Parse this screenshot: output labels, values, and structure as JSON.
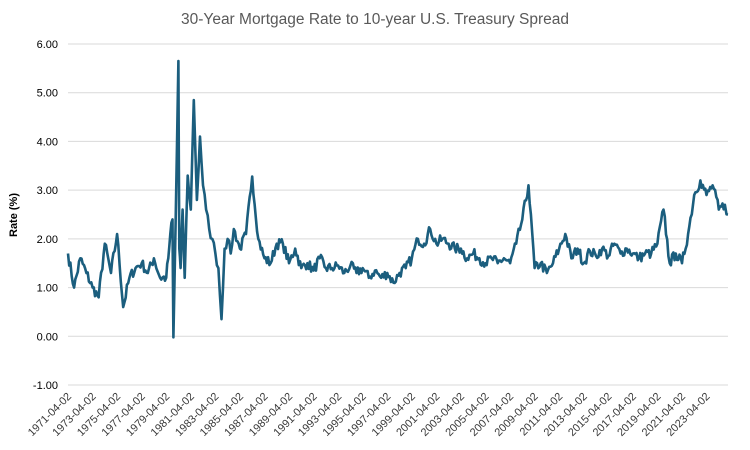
{
  "chart_data": {
    "type": "line",
    "title": "30-Year Mortgage Rate to 10-year U.S. Treasury Spread",
    "xlabel": "",
    "ylabel": "Rate (%)",
    "ylim": [
      -1.0,
      6.0
    ],
    "y_ticks": [
      "6.00",
      "5.00",
      "4.00",
      "3.00",
      "2.00",
      "1.00",
      "0.00",
      "-1.00"
    ],
    "x_range": [
      "1971-04-02",
      "2024-12-31"
    ],
    "x_ticks": [
      "1971-04-02",
      "1973-04-02",
      "1975-04-02",
      "1977-04-02",
      "1979-04-02",
      "1981-04-02",
      "1983-04-02",
      "1985-04-02",
      "1987-04-02",
      "1989-04-02",
      "1991-04-02",
      "1993-04-02",
      "1995-04-02",
      "1997-04-02",
      "1999-04-02",
      "2001-04-02",
      "2003-04-02",
      "2005-04-02",
      "2007-04-02",
      "2009-04-02",
      "2011-04-02",
      "2013-04-02",
      "2015-04-02",
      "2017-04-02",
      "2019-04-02",
      "2021-04-02",
      "2023-04-02"
    ],
    "grid": true,
    "legend": "none",
    "line_color": "#1b5e7e",
    "series": [
      {
        "x": [
          "1971-04-02",
          "1971-10-01",
          "1972-04-01",
          "1972-10-01",
          "1973-04-02",
          "1973-10-01",
          "1974-04-01",
          "1974-10-01",
          "1975-04-02",
          "1975-10-01",
          "1976-04-01",
          "1976-10-01",
          "1977-04-02",
          "1977-10-01",
          "1978-04-01",
          "1978-10-01",
          "1979-04-02",
          "1979-06-01",
          "1979-08-01",
          "1979-10-05",
          "1979-11-01",
          "1980-01-04",
          "1980-03-28",
          "1980-04-25",
          "1980-06-01",
          "1980-08-01",
          "1980-10-01",
          "1981-01-01",
          "1981-04-02",
          "1981-07-01",
          "1981-10-01",
          "1982-01-01",
          "1982-04-01",
          "1982-07-01",
          "1982-10-01",
          "1983-01-01",
          "1983-04-02",
          "1983-07-01",
          "1983-10-01",
          "1984-01-01",
          "1984-04-01",
          "1984-07-01",
          "1984-10-01",
          "1985-04-02",
          "1985-10-01",
          "1986-04-01",
          "1986-10-01",
          "1987-04-02",
          "1987-10-01",
          "1988-04-01",
          "1988-10-01",
          "1989-04-02",
          "1989-10-01",
          "1990-04-01",
          "1990-10-01",
          "1991-04-02",
          "1991-10-01",
          "1992-04-01",
          "1992-10-01",
          "1993-04-02",
          "1993-10-01",
          "1994-04-01",
          "1994-10-01",
          "1995-04-02",
          "1995-10-01",
          "1996-04-01",
          "1996-10-01",
          "1997-04-02",
          "1997-10-01",
          "1998-04-01",
          "1998-10-01",
          "1999-04-02",
          "1999-10-01",
          "2000-04-01",
          "2000-10-01",
          "2001-04-02",
          "2001-10-01",
          "2002-04-01",
          "2002-10-01",
          "2003-04-02",
          "2003-10-01",
          "2004-04-01",
          "2004-10-01",
          "2005-04-02",
          "2005-10-01",
          "2006-04-01",
          "2006-10-01",
          "2007-04-02",
          "2007-10-01",
          "2008-04-01",
          "2008-10-01",
          "2009-04-02",
          "2009-10-01",
          "2010-04-01",
          "2010-10-01",
          "2011-04-02",
          "2011-10-01",
          "2012-04-01",
          "2012-10-01",
          "2013-04-02",
          "2013-10-01",
          "2014-04-01",
          "2014-10-01",
          "2015-04-02",
          "2015-10-01",
          "2016-04-01",
          "2016-10-01",
          "2017-04-02",
          "2017-10-01",
          "2018-04-01",
          "2018-10-01",
          "2019-04-02",
          "2019-10-01",
          "2020-04-01",
          "2020-10-01",
          "2021-04-02",
          "2021-10-01",
          "2022-04-01",
          "2022-10-01",
          "2023-04-02",
          "2023-10-01",
          "2024-04-01",
          "2024-10-01",
          "2024-12-31"
        ],
        "values": [
          1.7,
          1.0,
          1.6,
          1.3,
          1.0,
          0.8,
          1.9,
          1.3,
          2.1,
          0.6,
          1.2,
          1.4,
          1.5,
          1.3,
          1.6,
          1.2,
          1.2,
          1.6,
          2.1,
          2.4,
          -0.02,
          2.2,
          5.65,
          1.8,
          1.4,
          2.6,
          1.2,
          3.3,
          2.6,
          4.85,
          2.8,
          4.1,
          3.1,
          2.6,
          2.2,
          2.0,
          1.7,
          1.4,
          0.35,
          1.8,
          2.0,
          1.7,
          2.2,
          1.8,
          2.1,
          3.28,
          2.0,
          1.6,
          1.5,
          1.9,
          1.9,
          1.5,
          1.8,
          1.4,
          1.5,
          1.35,
          1.6,
          1.4,
          1.4,
          1.45,
          1.3,
          1.45,
          1.3,
          1.4,
          1.2,
          1.35,
          1.2,
          1.3,
          1.1,
          1.3,
          1.4,
          1.6,
          2.0,
          1.9,
          2.2,
          1.9,
          2.0,
          1.9,
          1.8,
          1.8,
          1.6,
          1.7,
          1.6,
          1.5,
          1.6,
          1.5,
          1.6,
          1.5,
          1.9,
          2.4,
          3.1,
          1.4,
          1.5,
          1.3,
          1.5,
          1.8,
          2.1,
          1.6,
          1.8,
          1.5,
          1.75,
          1.65,
          1.8,
          1.65,
          1.9,
          1.7,
          1.8,
          1.7,
          1.6,
          1.7,
          1.7,
          1.9,
          2.6,
          1.5,
          1.7,
          1.5,
          2.1,
          2.9,
          3.2,
          2.9,
          3.1,
          2.6,
          2.7,
          2.5
        ]
      }
    ]
  }
}
